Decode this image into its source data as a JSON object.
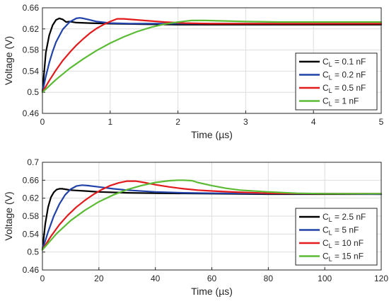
{
  "chart_data": [
    {
      "type": "line",
      "xlabel": "Time (µs)",
      "ylabel": "Voltage (V)",
      "xlim": [
        0,
        5
      ],
      "ylim": [
        0.46,
        0.66
      ],
      "xticks": [
        "0",
        "1",
        "2",
        "3",
        "4",
        "5"
      ],
      "yticks": [
        "0.46",
        "0.5",
        "0.54",
        "0.58",
        "0.62",
        "0.66"
      ],
      "grid": true,
      "legend_position": "bottom-right",
      "series": [
        {
          "name": "C_L = 0.1 nF",
          "label_main": "C",
          "label_sub": "L",
          "label_rest": " = 0.1 nF",
          "color": "#000000",
          "x": [
            0,
            0.05,
            0.1,
            0.15,
            0.2,
            0.25,
            0.3,
            0.35,
            0.4,
            0.5,
            0.7,
            1.0,
            1.5,
            2,
            3,
            4,
            5
          ],
          "y": [
            0.5,
            0.575,
            0.608,
            0.627,
            0.637,
            0.64,
            0.638,
            0.633,
            0.634,
            0.632,
            0.631,
            0.63,
            0.629,
            0.628,
            0.628,
            0.628,
            0.628
          ]
        },
        {
          "name": "C_L = 0.2 nF",
          "label_main": "C",
          "label_sub": "L",
          "label_rest": " = 0.2 nF",
          "color": "#2142a8",
          "x": [
            0,
            0.05,
            0.1,
            0.15,
            0.2,
            0.3,
            0.4,
            0.5,
            0.55,
            0.6,
            0.7,
            0.8,
            1.0,
            1.3,
            1.6,
            2,
            3,
            4,
            5
          ],
          "y": [
            0.5,
            0.53,
            0.556,
            0.577,
            0.595,
            0.619,
            0.633,
            0.64,
            0.641,
            0.64,
            0.637,
            0.634,
            0.631,
            0.63,
            0.63,
            0.63,
            0.63,
            0.63,
            0.63
          ]
        },
        {
          "name": "C_L = 0.5 nF",
          "label_main": "C",
          "label_sub": "L",
          "label_rest": " = 0.5 nF",
          "color": "#e31a1c",
          "x": [
            0,
            0.1,
            0.2,
            0.3,
            0.4,
            0.5,
            0.6,
            0.7,
            0.8,
            0.9,
            1.0,
            1.1,
            1.2,
            1.3,
            1.5,
            1.8,
            2.1,
            2.5,
            3,
            4,
            5
          ],
          "y": [
            0.5,
            0.522,
            0.542,
            0.56,
            0.575,
            0.589,
            0.601,
            0.612,
            0.621,
            0.628,
            0.634,
            0.639,
            0.639,
            0.638,
            0.636,
            0.633,
            0.631,
            0.63,
            0.63,
            0.63,
            0.63
          ]
        },
        {
          "name": "C_L = 1 nF",
          "label_main": "C",
          "label_sub": "L",
          "label_rest": " = 1 nF",
          "color": "#5cbb35",
          "x": [
            0,
            0.2,
            0.4,
            0.6,
            0.8,
            1.0,
            1.2,
            1.4,
            1.6,
            1.8,
            2.0,
            2.2,
            2.4,
            2.7,
            3,
            3.5,
            4,
            5
          ],
          "y": [
            0.5,
            0.524,
            0.545,
            0.563,
            0.579,
            0.593,
            0.605,
            0.615,
            0.623,
            0.629,
            0.633,
            0.636,
            0.636,
            0.635,
            0.634,
            0.633,
            0.633,
            0.633
          ]
        }
      ]
    },
    {
      "type": "line",
      "xlabel": "Time (µs)",
      "ylabel": "Voltage (V)",
      "xlim": [
        0,
        120
      ],
      "ylim": [
        0.46,
        0.7
      ],
      "xticks": [
        "0",
        "20",
        "40",
        "60",
        "80",
        "100",
        "120"
      ],
      "yticks": [
        "0.46",
        "0.5",
        "0.54",
        "0.58",
        "0.62",
        "0.66",
        "0.7"
      ],
      "grid": true,
      "legend_position": "bottom-right",
      "series": [
        {
          "name": "C_L = 2.5 nF",
          "label_main": "C",
          "label_sub": "L",
          "label_rest": " = 2.5 nF",
          "color": "#000000",
          "x": [
            0,
            1,
            2,
            3,
            4,
            5,
            6,
            7,
            8,
            10,
            15,
            20,
            30,
            40,
            60,
            80,
            100,
            120
          ],
          "y": [
            0.505,
            0.563,
            0.6,
            0.622,
            0.633,
            0.639,
            0.641,
            0.641,
            0.64,
            0.638,
            0.636,
            0.634,
            0.632,
            0.631,
            0.63,
            0.629,
            0.629,
            0.629
          ]
        },
        {
          "name": "C_L = 5 nF",
          "label_main": "C",
          "label_sub": "L",
          "label_rest": " = 5 nF",
          "color": "#2142a8",
          "x": [
            0,
            2,
            4,
            6,
            8,
            10,
            12,
            14,
            16,
            20,
            25,
            30,
            40,
            50,
            60,
            80,
            100,
            120
          ],
          "y": [
            0.505,
            0.545,
            0.58,
            0.607,
            0.627,
            0.64,
            0.647,
            0.649,
            0.648,
            0.645,
            0.641,
            0.638,
            0.634,
            0.632,
            0.631,
            0.63,
            0.63,
            0.629
          ]
        },
        {
          "name": "C_L = 10 nF",
          "label_main": "C",
          "label_sub": "L",
          "label_rest": " = 10 nF",
          "color": "#e31a1c",
          "x": [
            0,
            3,
            6,
            9,
            12,
            15,
            18,
            21,
            24,
            27,
            30,
            33,
            36,
            40,
            45,
            50,
            55,
            60,
            70,
            80,
            100,
            120
          ],
          "y": [
            0.505,
            0.535,
            0.561,
            0.582,
            0.6,
            0.615,
            0.628,
            0.639,
            0.648,
            0.654,
            0.658,
            0.658,
            0.655,
            0.65,
            0.645,
            0.641,
            0.638,
            0.636,
            0.633,
            0.631,
            0.63,
            0.63
          ]
        },
        {
          "name": "C_L = 15 nF",
          "label_main": "C",
          "label_sub": "L",
          "label_rest": " = 15 nF",
          "color": "#5cbb35",
          "x": [
            0,
            5,
            10,
            15,
            20,
            25,
            30,
            35,
            40,
            45,
            48,
            50,
            53,
            55,
            60,
            65,
            70,
            80,
            90,
            100,
            110,
            120
          ],
          "y": [
            0.505,
            0.541,
            0.57,
            0.593,
            0.612,
            0.627,
            0.639,
            0.648,
            0.655,
            0.659,
            0.66,
            0.66,
            0.659,
            0.655,
            0.648,
            0.642,
            0.638,
            0.634,
            0.631,
            0.63,
            0.63,
            0.63
          ]
        }
      ]
    }
  ]
}
